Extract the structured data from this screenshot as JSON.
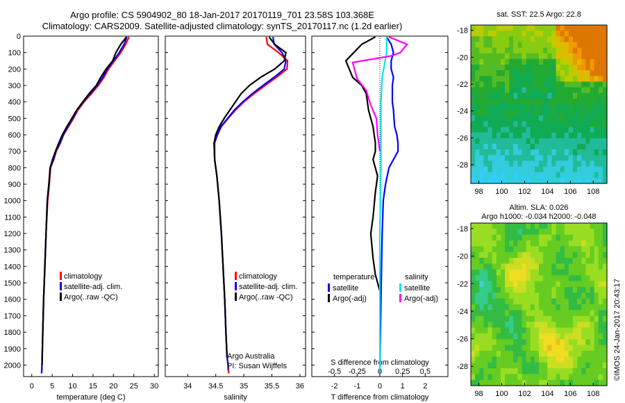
{
  "header": {
    "title1": "Argo profile: CS 5904902_80 18-Jan-2017 20170119_701 23.58S 103.368E",
    "title2": "Climatology: CARS2009. Satellite-adjusted climatology: synTS_20170117.nc (1.2d earlier)"
  },
  "credit": "©IMOS 24-Jan-2017 20:43:17",
  "colors": {
    "climatology": "#ff0000",
    "satellite": "#0000ff",
    "argo": "#000000",
    "sat_salinity": "#00e5ee",
    "argo_salinity": "#ff00ff"
  },
  "chart_data": [
    {
      "type": "line",
      "panel": "temperature",
      "xlabel": "temperature (deg C)",
      "xlim": [
        -2,
        31
      ],
      "xticks": [
        0,
        5,
        10,
        15,
        20,
        25,
        30
      ],
      "ylim": [
        0,
        2070
      ],
      "yticks": [
        0,
        100,
        200,
        300,
        400,
        500,
        600,
        700,
        800,
        900,
        1000,
        1100,
        1200,
        1300,
        1400,
        1500,
        1600,
        1700,
        1800,
        1900,
        2000
      ],
      "legend": [
        "climatology",
        "satellite-adj. clim.",
        "Argo(..raw -QC)"
      ],
      "series": [
        {
          "name": "climatology",
          "color": "#ff0000",
          "x": [
            23.8,
            23,
            21.8,
            20.3,
            18.8,
            17.7,
            16.3,
            14.6,
            12.8,
            11.3,
            10.2,
            9.0,
            7.8,
            7.0,
            6.0,
            5.4,
            4.6,
            4.3,
            3.9,
            3.5,
            3.2,
            2.9,
            2.7,
            2.5,
            2.4
          ],
          "y": [
            5,
            50,
            100,
            150,
            200,
            250,
            300,
            350,
            400,
            450,
            500,
            550,
            600,
            650,
            700,
            750,
            800,
            900,
            1000,
            1200,
            1400,
            1600,
            1800,
            2000,
            2050
          ]
        },
        {
          "name": "satellite-adj. clim.",
          "color": "#0000ff",
          "x": [
            23.3,
            22.6,
            21.4,
            20.0,
            18.5,
            17.4,
            16.0,
            14.3,
            12.6,
            11.1,
            10.0,
            8.8,
            7.7,
            6.9,
            5.9,
            5.3,
            4.5,
            4.2,
            3.8,
            3.5,
            3.2,
            2.9,
            2.7,
            2.5,
            2.4
          ],
          "y": [
            5,
            50,
            100,
            150,
            200,
            250,
            300,
            350,
            400,
            450,
            500,
            550,
            600,
            650,
            700,
            750,
            800,
            900,
            1000,
            1200,
            1400,
            1600,
            1800,
            2000,
            2050
          ]
        },
        {
          "name": "Argo(..raw -QC)",
          "color": "#000000",
          "x": [
            23.2,
            21.8,
            20.6,
            19.8,
            18.2,
            16.9,
            15.8,
            14.0,
            12.5,
            11.0,
            9.8,
            8.6,
            7.5,
            6.6,
            5.8,
            5.1,
            4.5,
            4.2,
            3.8,
            3.5,
            3.2,
            2.9,
            2.7,
            2.5
          ],
          "y": [
            5,
            50,
            100,
            150,
            200,
            250,
            300,
            350,
            400,
            450,
            500,
            550,
            600,
            650,
            700,
            750,
            800,
            900,
            1000,
            1200,
            1400,
            1600,
            1800,
            2000
          ]
        }
      ]
    },
    {
      "type": "line",
      "panel": "salinity",
      "xlabel": "salinity",
      "xlim": [
        33.6,
        36.1
      ],
      "xticks": [
        34,
        34.5,
        35,
        35.5,
        36
      ],
      "ylim": [
        0,
        2070
      ],
      "legend": [
        "climatology",
        "satellite-adj. clim.",
        "Argo(..raw -QC)"
      ],
      "annotation": [
        "Argo Australia",
        "PI: Susan Wijffels"
      ],
      "series": [
        {
          "name": "climatology",
          "color": "#ff0000",
          "x": [
            35.4,
            35.42,
            35.62,
            35.78,
            35.77,
            35.58,
            35.38,
            35.18,
            35.0,
            34.85,
            34.72,
            34.6,
            34.53,
            34.48,
            34.48,
            34.52,
            34.56,
            34.6,
            34.63,
            34.66,
            34.68,
            34.7,
            34.72,
            34.73
          ],
          "y": [
            5,
            50,
            100,
            150,
            200,
            250,
            300,
            350,
            400,
            450,
            500,
            550,
            600,
            650,
            750,
            850,
            1000,
            1200,
            1400,
            1600,
            1800,
            1950,
            2000,
            2050
          ]
        },
        {
          "name": "satellite-adj. clim.",
          "color": "#0000ff",
          "x": [
            35.52,
            35.54,
            35.68,
            35.75,
            35.72,
            35.54,
            35.34,
            35.15,
            34.98,
            34.83,
            34.71,
            34.59,
            34.53,
            34.47,
            34.48,
            34.52,
            34.56,
            34.6,
            34.63,
            34.66,
            34.68,
            34.7,
            34.72,
            34.72
          ],
          "y": [
            5,
            50,
            100,
            150,
            200,
            250,
            300,
            350,
            400,
            450,
            500,
            550,
            600,
            650,
            750,
            850,
            1000,
            1200,
            1400,
            1600,
            1800,
            1950,
            2000,
            2030
          ]
        },
        {
          "name": "Argo(..raw -QC)",
          "color": "#000000",
          "x": [
            35.45,
            35.55,
            35.75,
            35.72,
            35.55,
            35.3,
            35.1,
            34.95,
            34.85,
            34.75,
            34.65,
            34.56,
            34.5,
            34.47,
            34.48,
            34.52,
            34.56,
            34.6,
            34.63,
            34.66,
            34.68,
            34.7
          ],
          "y": [
            5,
            50,
            100,
            150,
            200,
            250,
            300,
            350,
            400,
            450,
            500,
            550,
            600,
            650,
            750,
            850,
            1000,
            1200,
            1400,
            1600,
            1800,
            1950
          ]
        }
      ]
    },
    {
      "type": "line",
      "panel": "difference",
      "xlabel": "T difference from climatology",
      "xlabel_top": "S difference from climatology",
      "xlim": [
        -3,
        3
      ],
      "xticks": [
        -2,
        -1,
        0,
        1,
        2
      ],
      "xticks_top": [
        "-0.5",
        "-0.25",
        "0",
        "0.25",
        "0.5"
      ],
      "ylim": [
        0,
        2070
      ],
      "legend_headers": [
        "temperature",
        "salinity"
      ],
      "legend": [
        "satellite",
        "Argo(-adj)",
        "satellite",
        "Argo(-adj)"
      ],
      "series": [
        {
          "name": "temperature satellite",
          "color": "#0000ff",
          "x": [
            0.3,
            0.5,
            0.6,
            0.5,
            0.5,
            0.6,
            0.55,
            0.55,
            0.6,
            0.65,
            0.75,
            0.8,
            0.8,
            0.6,
            0.4,
            0.25,
            0.15,
            0.1,
            0.05,
            0,
            0
          ],
          "y": [
            5,
            50,
            100,
            150,
            200,
            250,
            300,
            400,
            450,
            550,
            600,
            650,
            700,
            750,
            800,
            900,
            1000,
            1200,
            1600,
            2000,
            2050
          ]
        },
        {
          "name": "temperature Argo(-adj)",
          "color": "#000000",
          "x": [
            -0.2,
            -0.8,
            -1.5,
            -1.2,
            -0.8,
            -0.6,
            -0.5,
            -0.3,
            -0.2,
            -0.2,
            -0.3,
            -0.1,
            -0.2,
            -0.3,
            -0.4,
            -0.3,
            -0.2,
            0
          ],
          "y": [
            5,
            50,
            150,
            250,
            300,
            350,
            450,
            550,
            650,
            700,
            750,
            850,
            950,
            1100,
            1200,
            1350,
            1450,
            1550
          ]
        },
        {
          "name": "salinity satellite",
          "color": "#00e5ee",
          "x": [
            0.3,
            0.3,
            0.1,
            0.05,
            0.05,
            0,
            0,
            0
          ],
          "y": [
            5,
            100,
            250,
            400,
            800,
            1200,
            1600,
            2050
          ]
        },
        {
          "name": "salinity Argo(-adj)",
          "color": "#ff00ff",
          "x": [
            0.4,
            1.2,
            0.9,
            0.5,
            -1.2,
            -1.0,
            -0.6,
            -0.4,
            -0.15,
            -0.1,
            0
          ],
          "y": [
            5,
            50,
            100,
            120,
            160,
            260,
            330,
            420,
            500,
            600,
            700
          ]
        }
      ]
    },
    {
      "type": "heatmap",
      "panel": "sst-map",
      "title": "sat. SST: 22.5  Argo: 22.8",
      "xticks": [
        98,
        100,
        102,
        104,
        106,
        108
      ],
      "yticks": [
        -18,
        -20,
        -22,
        -24,
        -26,
        -28
      ]
    },
    {
      "type": "heatmap",
      "panel": "sla-map",
      "title": "Altim. SLA: 0.026",
      "subtitle": "Argo h1000: -0.034 h2000: -0.048",
      "xticks": [
        98,
        100,
        102,
        104,
        106,
        108
      ],
      "yticks": [
        -18,
        -20,
        -22,
        -24,
        -26,
        -28
      ]
    }
  ]
}
